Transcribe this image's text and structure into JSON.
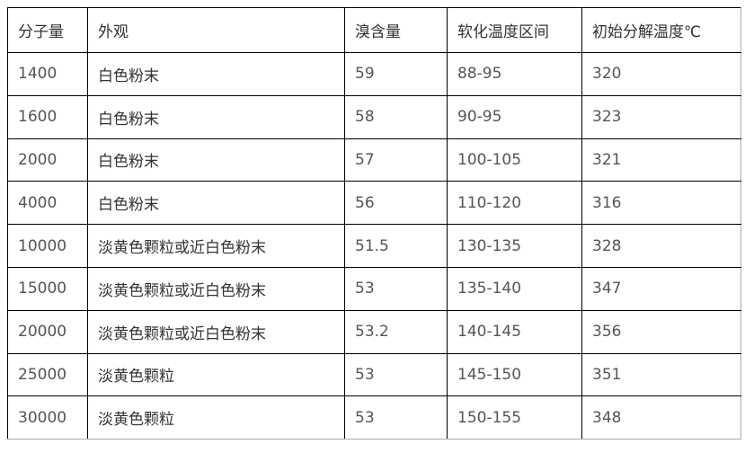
{
  "table": {
    "headers": [
      "分子量",
      "外观",
      "溴含量",
      "软化温度区间",
      "初始分解温度℃"
    ],
    "rows": [
      [
        "1400",
        "白色粉末",
        "59",
        "88-95",
        "320"
      ],
      [
        "1600",
        "白色粉末",
        "58",
        "90-95",
        "323"
      ],
      [
        "2000",
        "白色粉末",
        "57",
        "100-105",
        "321"
      ],
      [
        "4000",
        "白色粉末",
        "56",
        "110-120",
        "316"
      ],
      [
        "10000",
        "淡黄色颗粒或近白色粉末",
        "51.5",
        "130-135",
        "328"
      ],
      [
        "15000",
        "淡黄色颗粒或近白色粉末",
        "53",
        "135-140",
        "347"
      ],
      [
        "20000",
        "淡黄色颗粒或近白色粉末",
        "53.2",
        "140-145",
        "356"
      ],
      [
        "25000",
        "淡黄色颗粒",
        "53",
        "145-150",
        "351"
      ],
      [
        "30000",
        "淡黄色颗粒",
        "53",
        "150-155",
        "348"
      ]
    ]
  }
}
